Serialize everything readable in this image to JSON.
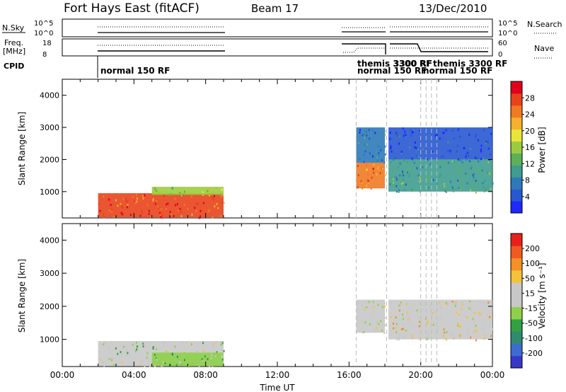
{
  "header": {
    "station": "Fort Hays East (fitACF)",
    "beam": "Beam 17",
    "date": "13/Dec/2010"
  },
  "top_panels": {
    "nsky_label": "N.Sky",
    "nsky_ticks": [
      "10^5",
      "10^0"
    ],
    "nsearch_label": "N.Search",
    "nsearch_ticks": [
      "10^5",
      "10^0"
    ],
    "freq_label_1": "Freq.",
    "freq_label_2": "[MHz]",
    "freq_ticks": [
      "18",
      "8"
    ],
    "nave_label": "Nave",
    "nave_ticks": [
      "60",
      "0"
    ],
    "cpid_label": "CPID",
    "cpid_text_1": "normal 150 RF",
    "cpid_text_2": "themis 3300 RF",
    "cpid_text_3": "normal 150 RF",
    "cpid_text_4": "3300 RF",
    "cpid_text_5": "themis 3300 RF",
    "cpid_text_6": "normal 150 RF"
  },
  "colors": {
    "power": [
      "#1e28ff",
      "#2858d0",
      "#2e7ab8",
      "#3f9c8f",
      "#5cb05a",
      "#9ccc3e",
      "#e8e63a",
      "#f4b02e",
      "#f07a22",
      "#e8421c",
      "#e0001c"
    ],
    "velocity": [
      "#3838c8",
      "#3c6cd0",
      "#2f8a6e",
      "#33a043",
      "#8fd04a",
      "#c8c8c8",
      "#c8c8c8",
      "#f4c23a",
      "#f39028",
      "#f05a22",
      "#e8201c"
    ]
  },
  "chart_data": [
    {
      "type": "heatmap",
      "title": "Power",
      "ylabel": "Slant Range [km]",
      "xlabel": "",
      "y_ticks": [
        1000,
        2000,
        3000,
        4000
      ],
      "ylim": [
        180,
        4500
      ],
      "colorbar_label": "Power [dB]",
      "colorbar_ticks": [
        "4",
        "8",
        "12",
        "16",
        "20",
        "24",
        "28"
      ],
      "segments": [
        {
          "t0": 2.0,
          "t1": 9.0,
          "r0": 200,
          "r1": 950,
          "level": 9
        },
        {
          "t0": 5.0,
          "t1": 9.0,
          "r0": 900,
          "r1": 1150,
          "level": 5
        },
        {
          "t0": 16.4,
          "t1": 18.0,
          "r0": 1100,
          "r1": 1900,
          "level": 8
        },
        {
          "t0": 16.4,
          "t1": 18.0,
          "r0": 1900,
          "r1": 3000,
          "level": 2
        },
        {
          "t0": 18.2,
          "t1": 24.0,
          "r0": 1000,
          "r1": 2000,
          "level": 3
        },
        {
          "t0": 18.2,
          "t1": 24.0,
          "r0": 2000,
          "r1": 3000,
          "level": 1
        }
      ]
    },
    {
      "type": "heatmap",
      "title": "Velocity",
      "ylabel": "Slant Range [km]",
      "xlabel": "Time UT",
      "x_ticks": [
        "00:00",
        "04:00",
        "08:00",
        "12:00",
        "16:00",
        "20:00",
        "00:00"
      ],
      "y_ticks": [
        1000,
        2000,
        3000,
        4000
      ],
      "ylim": [
        180,
        4500
      ],
      "colorbar_label": "Velocity [m s⁻¹]",
      "colorbar_ticks": [
        "200",
        "100",
        "50",
        "15",
        "-15",
        "-50",
        "-100",
        "-200"
      ],
      "segments": [
        {
          "t0": 2.0,
          "t1": 9.0,
          "r0": 200,
          "r1": 950,
          "level": 5
        },
        {
          "t0": 5.0,
          "t1": 9.0,
          "r0": 200,
          "r1": 600,
          "level": 4
        },
        {
          "t0": 16.4,
          "t1": 18.0,
          "r0": 1200,
          "r1": 2200,
          "level": 5
        },
        {
          "t0": 18.2,
          "t1": 24.0,
          "r0": 1000,
          "r1": 2200,
          "level": 6
        }
      ]
    }
  ]
}
